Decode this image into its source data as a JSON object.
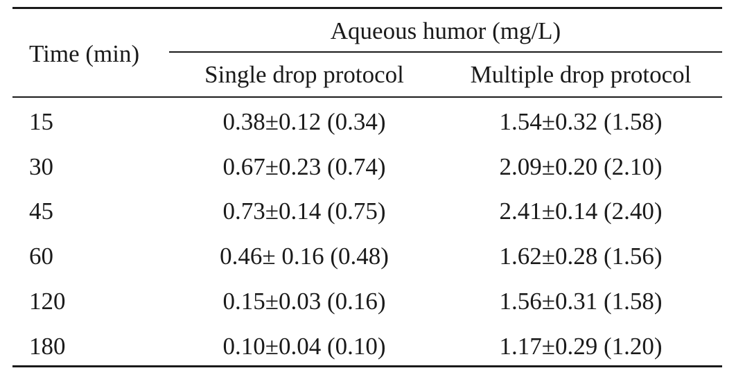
{
  "table": {
    "header": {
      "time": "Time (min)",
      "group": "Aqueous humor (mg/L)",
      "single": "Single drop protocol",
      "multiple": "Multiple drop protocol"
    },
    "rows": [
      {
        "time": "15",
        "single": "0.38±0.12 (0.34)",
        "multiple": "1.54±0.32 (1.58)"
      },
      {
        "time": "30",
        "single": "0.67±0.23 (0.74)",
        "multiple": "2.09±0.20 (2.10)"
      },
      {
        "time": "45",
        "single": "0.73±0.14 (0.75)",
        "multiple": "2.41±0.14 (2.40)"
      },
      {
        "time": "60",
        "single": "0.46± 0.16 (0.48)",
        "multiple": "1.62±0.28 (1.56)"
      },
      {
        "time": "120",
        "single": "0.15±0.03 (0.16)",
        "multiple": "1.56±0.31 (1.58)"
      },
      {
        "time": "180",
        "single": "0.10±0.04 (0.10)",
        "multiple": "1.17±0.29 (1.20)"
      }
    ]
  }
}
